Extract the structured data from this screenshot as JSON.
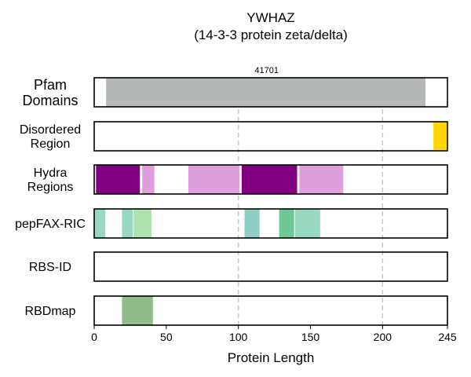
{
  "chart_data": {
    "type": "bar",
    "title": "YWHAZ",
    "subtitle": "(14-3-3 protein zeta/delta)",
    "xlabel": "Protein Length",
    "xlim": [
      0,
      245
    ],
    "xticks": [
      0,
      50,
      100,
      150,
      200,
      245
    ],
    "gridlines_at": [
      100,
      200
    ],
    "annotation": "41701",
    "tracks": [
      {
        "label": "Pfam\nDomains",
        "segments": [
          {
            "start": 8,
            "end": 230,
            "color": "#b4b9b7"
          }
        ]
      },
      {
        "label": "Disordered\nRegion",
        "segments": [
          {
            "start": 235,
            "end": 245,
            "color": "#ffd700"
          }
        ]
      },
      {
        "label": "Hydra\nRegions",
        "segments": [
          {
            "start": 1,
            "end": 32,
            "color": "#800080"
          },
          {
            "start": 33,
            "end": 42,
            "color": "#dda0dd"
          },
          {
            "start": 65,
            "end": 101,
            "color": "#dda0dd"
          },
          {
            "start": 102,
            "end": 141,
            "color": "#800080"
          },
          {
            "start": 142,
            "end": 173,
            "color": "#dda0dd"
          }
        ]
      },
      {
        "label": "pepFAX-RIC",
        "segments": [
          {
            "start": 0,
            "end": 8,
            "color": "#99d8c0"
          },
          {
            "start": 19,
            "end": 27,
            "color": "#99d8c0"
          },
          {
            "start": 27,
            "end": 40,
            "color": "#aee3b0"
          },
          {
            "start": 104,
            "end": 115,
            "color": "#8fd0c6"
          },
          {
            "start": 128,
            "end": 139,
            "color": "#6cc895"
          },
          {
            "start": 139,
            "end": 157,
            "color": "#99d8c0"
          }
        ]
      },
      {
        "label": "RBS-ID",
        "segments": []
      },
      {
        "label": "RBDmap",
        "segments": [
          {
            "start": 19,
            "end": 41,
            "color": "#90bd8a"
          }
        ]
      }
    ]
  }
}
